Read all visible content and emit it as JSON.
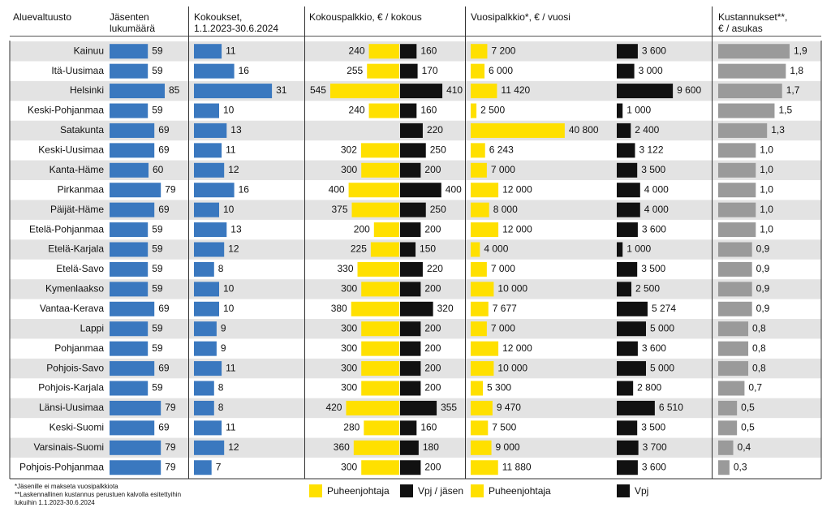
{
  "headers": {
    "region": [
      "Aluevaltuusto"
    ],
    "members": [
      "Jäsenten",
      "lukumäärä"
    ],
    "meetings": [
      "Kokoukset,",
      "1.1.2023-30.6.2024"
    ],
    "meeting_fee": [
      "Kokouspalkkio, € / kokous"
    ],
    "annual_fee": [
      "Vuosipalkkio*, € / vuosi"
    ],
    "cost": [
      "Kustannukset**,",
      "€ / asukas"
    ]
  },
  "regions": [
    "Kainuu",
    "Itä-Uusimaa",
    "Helsinki",
    "Keski-Pohjanmaa",
    "Satakunta",
    "Keski-Uusimaa",
    "Kanta-Häme",
    "Pirkanmaa",
    "Päijät-Häme",
    "Etelä-Pohjanmaa",
    "Etelä-Karjala",
    "Etelä-Savo",
    "Kymenlaakso",
    "Vantaa-Kerava",
    "Lappi",
    "Pohjanmaa",
    "Pohjois-Savo",
    "Pohjois-Karjala",
    "Länsi-Uusimaa",
    "Keski-Suomi",
    "Varsinais-Suomi",
    "Pohjois-Pohjanmaa"
  ],
  "members": {
    "color": "#3a78bf",
    "values": [
      59,
      59,
      85,
      59,
      69,
      69,
      60,
      79,
      69,
      59,
      59,
      59,
      59,
      69,
      59,
      59,
      69,
      59,
      79,
      69,
      79,
      79
    ]
  },
  "meetings": {
    "color": "#3a78bf",
    "values": [
      11,
      16,
      31,
      10,
      13,
      11,
      12,
      16,
      10,
      13,
      12,
      8,
      10,
      10,
      9,
      9,
      11,
      8,
      8,
      11,
      12,
      7
    ]
  },
  "meeting_fee": {
    "series": [
      {
        "name": "Puheenjohtaja",
        "color": "#ffe000",
        "values": [
          240,
          255,
          545,
          240,
          null,
          302,
          300,
          400,
          375,
          200,
          225,
          330,
          300,
          380,
          300,
          300,
          300,
          300,
          420,
          280,
          360,
          300
        ]
      },
      {
        "name": "Vpj / jäsen",
        "color": "#111111",
        "values": [
          160,
          170,
          410,
          160,
          220,
          250,
          200,
          400,
          250,
          200,
          150,
          220,
          200,
          320,
          200,
          200,
          200,
          200,
          355,
          160,
          180,
          200
        ]
      }
    ]
  },
  "annual_fee": {
    "series": [
      {
        "name": "Puheenjohtaja",
        "color": "#ffe000",
        "values": [
          7200,
          6000,
          11420,
          2500,
          40800,
          6243,
          7000,
          12000,
          8000,
          12000,
          4000,
          7000,
          10000,
          7677,
          7000,
          12000,
          10000,
          5300,
          9470,
          7500,
          9000,
          11880
        ],
        "value_labels": [
          "7 200",
          "6 000",
          "11 420",
          "2 500",
          "40 800",
          "6 243",
          "7 000",
          "12 000",
          "8 000",
          "12 000",
          "4 000",
          "7 000",
          "10 000",
          "7 677",
          "7 000",
          "12 000",
          "10 000",
          "5 300",
          "9 470",
          "7 500",
          "9 000",
          "11 880"
        ]
      },
      {
        "name": "Vpj",
        "color": "#111111",
        "values": [
          3600,
          3000,
          9600,
          1000,
          2400,
          3122,
          3500,
          4000,
          4000,
          3600,
          1000,
          3500,
          2500,
          5274,
          5000,
          3600,
          5000,
          2800,
          6510,
          3500,
          3700,
          3600
        ],
        "value_labels": [
          "3 600",
          "3 000",
          "9 600",
          "1 000",
          "2 400",
          "3 122",
          "3 500",
          "4 000",
          "4 000",
          "3 600",
          "1 000",
          "3 500",
          "2 500",
          "5 274",
          "5 000",
          "3 600",
          "5 000",
          "2 800",
          "6 510",
          "3 500",
          "3 700",
          "3 600"
        ]
      }
    ]
  },
  "cost": {
    "color": "#9a9a9a",
    "values": [
      1.9,
      1.8,
      1.7,
      1.5,
      1.3,
      1.0,
      1.0,
      1.0,
      1.0,
      1.0,
      0.9,
      0.9,
      0.9,
      0.9,
      0.8,
      0.8,
      0.8,
      0.7,
      0.5,
      0.5,
      0.4,
      0.3
    ],
    "value_labels": [
      "1,9",
      "1,8",
      "1,7",
      "1,5",
      "1,3",
      "1,0",
      "1,0",
      "1,0",
      "1,0",
      "1,0",
      "0,9",
      "0,9",
      "0,9",
      "0,9",
      "0,8",
      "0,8",
      "0,8",
      "0,7",
      "0,5",
      "0,5",
      "0,4",
      "0,3"
    ]
  },
  "footnotes": [
    "*Jäsenille ei makseta vuosipalkkiota",
    "**Laskennallinen kustannus perustuen kalvolla esitettyihin",
    "lukuihin 1.1.2023-30.6.2024"
  ]
}
